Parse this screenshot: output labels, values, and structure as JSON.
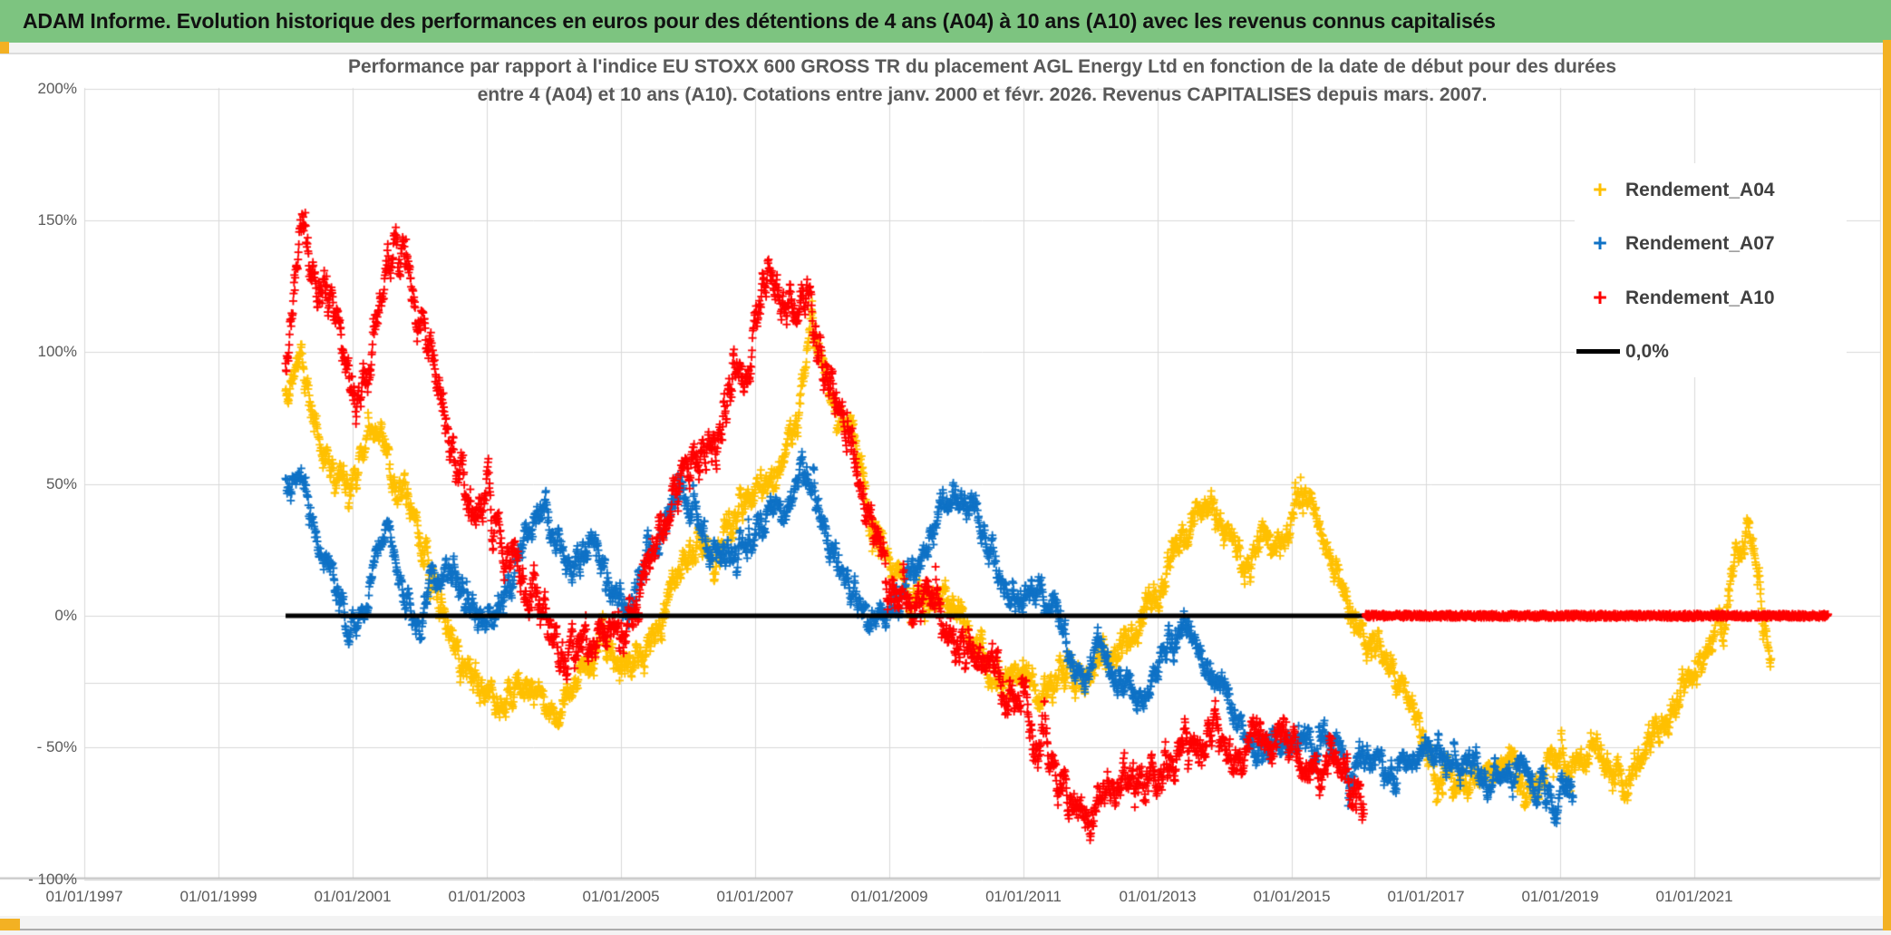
{
  "header": {
    "title": "ADAM Informe. Evolution historique des performances en euros pour des détentions de 4 ans (A04) à 10 ans (A10) avec les revenus connus capitalisés"
  },
  "chart_data": {
    "type": "scatter",
    "title_line1": "Performance par rapport à l'indice EU STOXX 600 GROSS TR  du placement AGL Energy Ltd en fonction de la date de début pour des durées",
    "title_line2": "entre 4 (A04) et 10 ans (A10). Cotations entre janv. 2000 et févr. 2026. Revenus CAPITALISES depuis mars. 2007.",
    "x_axis": {
      "tick_years": [
        1997,
        1999,
        2001,
        2003,
        2005,
        2007,
        2009,
        2011,
        2013,
        2015,
        2017,
        2019,
        2021
      ],
      "tick_labels": [
        "01/01/1997",
        "01/01/1999",
        "01/01/2001",
        "01/01/2003",
        "01/01/2005",
        "01/01/2007",
        "01/01/2009",
        "01/01/2011",
        "01/01/2013",
        "01/01/2015",
        "01/01/2017",
        "01/01/2019",
        "01/01/2021"
      ],
      "min_year": 1997,
      "max_year": 2023.75,
      "grid": true
    },
    "y_axis": {
      "tick_values": [
        200,
        150,
        100,
        50,
        0,
        -50,
        -100
      ],
      "tick_labels": [
        "200%",
        "150%",
        "100%",
        "50%",
        "0%",
        "- 50%",
        "- 100%"
      ],
      "min": -100,
      "max": 200,
      "extra_gridlines": [
        -25.5
      ],
      "grid": true
    },
    "legend": {
      "position": "upper-right",
      "entries": [
        {
          "label": "Rendement_A04",
          "color": "#FFC000",
          "marker": "plus"
        },
        {
          "label": "Rendement_A07",
          "color": "#0F72C6",
          "marker": "plus"
        },
        {
          "label": "Rendement_A10",
          "color": "#FF0000",
          "marker": "plus"
        },
        {
          "label": "0,0%",
          "color": "#000000",
          "marker": "line"
        }
      ]
    },
    "zero_line": {
      "label": "0,0%",
      "color": "#000000",
      "value": 0,
      "from": 2000.0,
      "to": 2016.1
    },
    "red_zero_extension": {
      "color": "#FF0000",
      "value": 0,
      "from": 2016.1,
      "to": 2023.0
    },
    "series": [
      {
        "name": "Rendement_A04",
        "color": "#FFC000",
        "marker": "+",
        "start": 2000.0,
        "end": 2022.15,
        "noise": 7,
        "step": 0.006,
        "seed": 11,
        "anchors": [
          [
            2000.0,
            85
          ],
          [
            2000.25,
            95
          ],
          [
            2000.5,
            70
          ],
          [
            2000.75,
            55
          ],
          [
            2001.0,
            55
          ],
          [
            2001.3,
            72
          ],
          [
            2001.5,
            62
          ],
          [
            2001.75,
            45
          ],
          [
            2002.0,
            30
          ],
          [
            2002.3,
            5
          ],
          [
            2002.6,
            -15
          ],
          [
            2002.9,
            -28
          ],
          [
            2003.15,
            -35
          ],
          [
            2003.4,
            -30
          ],
          [
            2003.65,
            -28
          ],
          [
            2003.85,
            -33
          ],
          [
            2004.05,
            -38
          ],
          [
            2004.4,
            -20
          ],
          [
            2004.7,
            -10
          ],
          [
            2005.0,
            -20
          ],
          [
            2005.35,
            -15
          ],
          [
            2005.6,
            0
          ],
          [
            2005.85,
            18
          ],
          [
            2006.1,
            24
          ],
          [
            2006.4,
            20
          ],
          [
            2006.7,
            40
          ],
          [
            2007.0,
            48
          ],
          [
            2007.35,
            55
          ],
          [
            2007.6,
            70
          ],
          [
            2007.85,
            108
          ],
          [
            2008.1,
            88
          ],
          [
            2008.4,
            68
          ],
          [
            2008.6,
            55
          ],
          [
            2008.85,
            30
          ],
          [
            2009.1,
            14
          ],
          [
            2009.5,
            4
          ],
          [
            2009.9,
            6
          ],
          [
            2010.3,
            -12
          ],
          [
            2010.7,
            -25
          ],
          [
            2011.0,
            -22
          ],
          [
            2011.3,
            -27
          ],
          [
            2011.8,
            -23
          ],
          [
            2012.3,
            -14
          ],
          [
            2012.9,
            2
          ],
          [
            2013.3,
            28
          ],
          [
            2013.75,
            42
          ],
          [
            2014.05,
            32
          ],
          [
            2014.3,
            16
          ],
          [
            2014.6,
            30
          ],
          [
            2014.85,
            22
          ],
          [
            2015.05,
            45
          ],
          [
            2015.3,
            40
          ],
          [
            2015.55,
            22
          ],
          [
            2015.8,
            6
          ],
          [
            2016.05,
            -10
          ],
          [
            2016.3,
            -12
          ],
          [
            2016.6,
            -27
          ],
          [
            2016.9,
            -42
          ],
          [
            2017.15,
            -55
          ],
          [
            2017.5,
            -66
          ],
          [
            2017.8,
            -61
          ],
          [
            2018.1,
            -58
          ],
          [
            2018.5,
            -62
          ],
          [
            2018.9,
            -61
          ],
          [
            2019.2,
            -57
          ],
          [
            2019.5,
            -49
          ],
          [
            2019.9,
            -63
          ],
          [
            2020.15,
            -56
          ],
          [
            2020.45,
            -44
          ],
          [
            2020.7,
            -33
          ],
          [
            2021.0,
            -20
          ],
          [
            2021.2,
            -9
          ],
          [
            2021.45,
            1
          ],
          [
            2021.6,
            18
          ],
          [
            2021.8,
            31
          ],
          [
            2021.95,
            15
          ],
          [
            2022.05,
            -6
          ],
          [
            2022.15,
            -12
          ]
        ]
      },
      {
        "name": "Rendement_A07",
        "color": "#0F72C6",
        "marker": "+",
        "start": 2000.0,
        "end": 2019.2,
        "noise": 6.5,
        "step": 0.006,
        "seed": 22,
        "anchors": [
          [
            2000.0,
            52
          ],
          [
            2000.2,
            58
          ],
          [
            2000.45,
            28
          ],
          [
            2000.7,
            18
          ],
          [
            2000.95,
            -6
          ],
          [
            2001.2,
            2
          ],
          [
            2001.45,
            33
          ],
          [
            2001.7,
            15
          ],
          [
            2001.95,
            -8
          ],
          [
            2002.2,
            16
          ],
          [
            2002.55,
            12
          ],
          [
            2002.8,
            0
          ],
          [
            2003.1,
            -3
          ],
          [
            2003.45,
            20
          ],
          [
            2003.8,
            43
          ],
          [
            2004.1,
            25
          ],
          [
            2004.3,
            17
          ],
          [
            2004.55,
            30
          ],
          [
            2004.85,
            12
          ],
          [
            2005.15,
            3
          ],
          [
            2005.5,
            30
          ],
          [
            2005.9,
            48
          ],
          [
            2006.2,
            33
          ],
          [
            2006.55,
            21
          ],
          [
            2006.9,
            30
          ],
          [
            2007.2,
            38
          ],
          [
            2007.55,
            46
          ],
          [
            2007.75,
            54
          ],
          [
            2008.0,
            38
          ],
          [
            2008.3,
            15
          ],
          [
            2008.6,
            2
          ],
          [
            2008.9,
            0
          ],
          [
            2009.15,
            5
          ],
          [
            2009.45,
            22
          ],
          [
            2009.7,
            36
          ],
          [
            2009.95,
            46
          ],
          [
            2010.2,
            42
          ],
          [
            2010.5,
            25
          ],
          [
            2010.8,
            7
          ],
          [
            2011.1,
            9
          ],
          [
            2011.45,
            7
          ],
          [
            2011.7,
            -18
          ],
          [
            2011.95,
            -30
          ],
          [
            2012.15,
            -6
          ],
          [
            2012.45,
            -22
          ],
          [
            2012.75,
            -32
          ],
          [
            2013.05,
            -18
          ],
          [
            2013.35,
            -4
          ],
          [
            2013.6,
            -14
          ],
          [
            2013.9,
            -22
          ],
          [
            2014.25,
            -42
          ],
          [
            2014.6,
            -48
          ],
          [
            2015.0,
            -47
          ],
          [
            2015.4,
            -50
          ],
          [
            2015.9,
            -57
          ],
          [
            2016.2,
            -56
          ],
          [
            2016.5,
            -58
          ],
          [
            2017.05,
            -51
          ],
          [
            2017.4,
            -55
          ],
          [
            2017.9,
            -60
          ],
          [
            2018.4,
            -59
          ],
          [
            2018.75,
            -64
          ],
          [
            2019.2,
            -70
          ]
        ]
      },
      {
        "name": "Rendement_A10",
        "color": "#FF0000",
        "marker": "+",
        "start": 2000.0,
        "end": 2016.08,
        "noise": 9,
        "step": 0.006,
        "seed": 33,
        "anchors": [
          [
            2000.0,
            95
          ],
          [
            2000.25,
            142
          ],
          [
            2000.5,
            127
          ],
          [
            2000.7,
            122
          ],
          [
            2000.9,
            95
          ],
          [
            2001.05,
            78
          ],
          [
            2001.25,
            92
          ],
          [
            2001.45,
            122
          ],
          [
            2001.62,
            150
          ],
          [
            2001.8,
            132
          ],
          [
            2002.0,
            112
          ],
          [
            2002.15,
            103
          ],
          [
            2002.35,
            80
          ],
          [
            2002.7,
            42
          ],
          [
            2003.0,
            47
          ],
          [
            2003.3,
            20
          ],
          [
            2003.6,
            10
          ],
          [
            2003.9,
            -7
          ],
          [
            2004.3,
            -12
          ],
          [
            2004.8,
            -9
          ],
          [
            2005.1,
            0
          ],
          [
            2005.4,
            20
          ],
          [
            2005.7,
            37
          ],
          [
            2006.0,
            58
          ],
          [
            2006.4,
            68
          ],
          [
            2006.8,
            92
          ],
          [
            2007.2,
            126
          ],
          [
            2007.5,
            114
          ],
          [
            2007.8,
            119
          ],
          [
            2008.05,
            88
          ],
          [
            2008.35,
            73
          ],
          [
            2008.6,
            50
          ],
          [
            2008.85,
            24
          ],
          [
            2009.1,
            4
          ],
          [
            2009.35,
            1
          ],
          [
            2009.6,
            3
          ],
          [
            2009.9,
            -7
          ],
          [
            2010.2,
            -11
          ],
          [
            2010.6,
            -21
          ],
          [
            2011.0,
            -38
          ],
          [
            2011.3,
            -51
          ],
          [
            2011.6,
            -66
          ],
          [
            2011.9,
            -77
          ],
          [
            2012.15,
            -71
          ],
          [
            2012.4,
            -63
          ],
          [
            2012.7,
            -66
          ],
          [
            2013.0,
            -61
          ],
          [
            2013.3,
            -54
          ],
          [
            2013.6,
            -50
          ],
          [
            2013.9,
            -46
          ],
          [
            2014.2,
            -57
          ],
          [
            2014.5,
            -50
          ],
          [
            2014.8,
            -45
          ],
          [
            2015.1,
            -54
          ],
          [
            2015.45,
            -57
          ],
          [
            2015.75,
            -61
          ],
          [
            2016.05,
            -67
          ]
        ]
      }
    ],
    "colors": {
      "header_green": "#7DC480",
      "accent_orange": "#F3B123",
      "gridline": "#D9D9D9",
      "axis_text": "#595959",
      "title_text": "#595959",
      "legend_text": "#404040"
    }
  }
}
